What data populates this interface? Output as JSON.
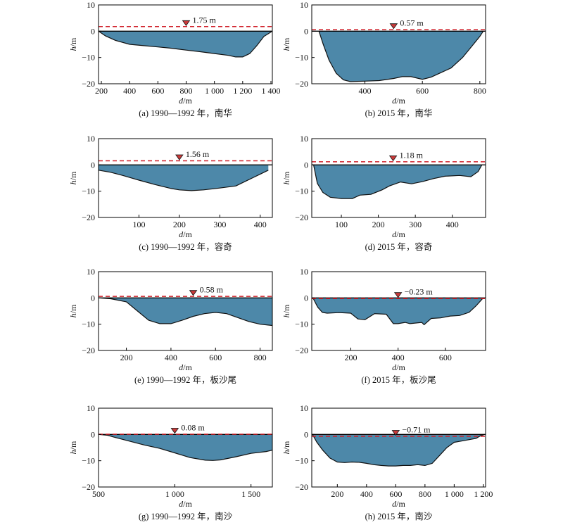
{
  "colors": {
    "fill": "#4d88a9",
    "bed_line": "#111111",
    "water_level": "#d0202a",
    "marker": "#c83a3a",
    "zero_line": "#000000"
  },
  "chart_data": [
    {
      "type": "area",
      "panel": "a",
      "caption": "(a) 1990—1992 年，南华",
      "xlabel": "d/m",
      "ylabel": "h/m",
      "xlim": [
        180,
        1410
      ],
      "ylim": [
        -20,
        10
      ],
      "xticks": [
        200,
        400,
        600,
        800,
        1000,
        1200,
        1400
      ],
      "xtick_labels": [
        "200",
        "400",
        "600",
        "800",
        "1 000",
        "1 200",
        "1 400"
      ],
      "yticks": [
        -20,
        -10,
        0,
        10
      ],
      "water_level": 1.75,
      "water_level_label": "1.75 m",
      "marker_x": 800,
      "x": [
        180,
        230,
        300,
        400,
        500,
        600,
        700,
        800,
        900,
        1000,
        1100,
        1150,
        1200,
        1250,
        1300,
        1350,
        1410
      ],
      "y": [
        0,
        -1.8,
        -3.5,
        -5.0,
        -5.5,
        -6.0,
        -6.5,
        -7.2,
        -7.8,
        -8.5,
        -9.2,
        -9.8,
        -9.8,
        -8.5,
        -5.5,
        -2.0,
        0
      ]
    },
    {
      "type": "area",
      "panel": "b",
      "caption": "(b) 2015 年，南华",
      "xlabel": "d/m",
      "ylabel": "h/m",
      "xlim": [
        215,
        820
      ],
      "ylim": [
        -20,
        10
      ],
      "xticks": [
        400,
        600,
        800
      ],
      "xtick_labels": [
        "400",
        "600",
        "800"
      ],
      "yticks": [
        -20,
        -10,
        0,
        10
      ],
      "water_level": 0.57,
      "water_level_label": "0.57 m",
      "marker_x": 500,
      "x": [
        240,
        255,
        275,
        300,
        325,
        350,
        400,
        450,
        500,
        530,
        560,
        600,
        630,
        660,
        700,
        740,
        770,
        800,
        812
      ],
      "y": [
        0,
        -5,
        -11,
        -16,
        -18.5,
        -19.2,
        -19,
        -18.8,
        -18,
        -17.3,
        -17.3,
        -18.3,
        -17.5,
        -16,
        -14,
        -10,
        -6,
        -2,
        0
      ]
    },
    {
      "type": "area",
      "panel": "c",
      "caption": "(c) 1990—1992 年，容奇",
      "xlabel": "d/m",
      "ylabel": "h/m",
      "xlim": [
        0,
        430
      ],
      "ylim": [
        -20,
        10
      ],
      "xticks": [
        100,
        200,
        300,
        400
      ],
      "xtick_labels": [
        "100",
        "200",
        "300",
        "400"
      ],
      "yticks": [
        -20,
        -10,
        0,
        10
      ],
      "water_level": 1.56,
      "water_level_label": "1.56 m",
      "marker_x": 200,
      "x": [
        0,
        30,
        60,
        100,
        140,
        180,
        200,
        230,
        260,
        300,
        340,
        360,
        380,
        400,
        420
      ],
      "y": [
        -2,
        -2.8,
        -4,
        -5.8,
        -7.5,
        -9.0,
        -9.5,
        -9.8,
        -9.5,
        -8.8,
        -8.0,
        -6.5,
        -5.0,
        -3.5,
        -2.0
      ]
    },
    {
      "type": "area",
      "panel": "d",
      "caption": "(d) 2015 年，容奇",
      "xlabel": "d/m",
      "ylabel": "h/m",
      "xlim": [
        20,
        490
      ],
      "ylim": [
        -20,
        10
      ],
      "xticks": [
        100,
        200,
        300,
        400
      ],
      "xtick_labels": [
        "100",
        "200",
        "300",
        "400"
      ],
      "yticks": [
        -20,
        -10,
        0,
        10
      ],
      "water_level": 1.18,
      "water_level_label": "1.18 m",
      "marker_x": 240,
      "x": [
        25,
        35,
        50,
        70,
        100,
        130,
        150,
        180,
        210,
        230,
        260,
        290,
        320,
        350,
        380,
        420,
        450,
        470,
        480
      ],
      "y": [
        0,
        -7,
        -10.5,
        -12.3,
        -12.8,
        -12.8,
        -11.5,
        -11.2,
        -9.5,
        -8.0,
        -6.5,
        -7.2,
        -6.3,
        -5.2,
        -4.3,
        -4.0,
        -4.5,
        -2.5,
        0
      ]
    },
    {
      "type": "area",
      "panel": "e",
      "caption": "(e) 1990—1992 年，板沙尾",
      "xlabel": "d/m",
      "ylabel": "h/m",
      "xlim": [
        75,
        855
      ],
      "ylim": [
        -20,
        10
      ],
      "xticks": [
        200,
        400,
        600,
        800
      ],
      "xtick_labels": [
        "200",
        "400",
        "600",
        "800"
      ],
      "yticks": [
        -20,
        -10,
        0,
        10
      ],
      "water_level": 0.58,
      "water_level_label": "0.58 m",
      "marker_x": 500,
      "x": [
        75,
        130,
        200,
        250,
        300,
        350,
        400,
        450,
        500,
        550,
        600,
        650,
        700,
        750,
        800,
        855
      ],
      "y": [
        0,
        -0.3,
        -1.5,
        -5,
        -8.5,
        -9.8,
        -9.8,
        -8.5,
        -7.0,
        -6.0,
        -5.5,
        -6.0,
        -7.5,
        -9.0,
        -10.0,
        -10.5
      ]
    },
    {
      "type": "area",
      "panel": "f",
      "caption": "(f) 2015 年，板沙尾",
      "xlabel": "d/m",
      "ylabel": "h/m",
      "xlim": [
        35,
        770
      ],
      "ylim": [
        -20,
        10
      ],
      "xticks": [
        200,
        400,
        600
      ],
      "xtick_labels": [
        "200",
        "400",
        "600"
      ],
      "yticks": [
        -20,
        -10,
        0,
        10
      ],
      "water_level": -0.23,
      "water_level_label": "−0.23 m",
      "marker_x": 400,
      "x": [
        40,
        60,
        80,
        100,
        150,
        200,
        230,
        260,
        300,
        350,
        380,
        400,
        430,
        450,
        500,
        510,
        540,
        580,
        620,
        660,
        700,
        730,
        760
      ],
      "y": [
        0,
        -3.5,
        -5.5,
        -5.8,
        -5.6,
        -5.8,
        -8.0,
        -8.3,
        -6.0,
        -6.2,
        -9.8,
        -9.8,
        -9.3,
        -9.8,
        -9.3,
        -10.2,
        -7.8,
        -7.6,
        -6.9,
        -6.7,
        -5.5,
        -3.0,
        0
      ]
    },
    {
      "type": "area",
      "panel": "g",
      "caption": "(g) 1990—1992 年，南沙",
      "xlabel": "d/m",
      "ylabel": "h/m",
      "xlim": [
        500,
        1640
      ],
      "ylim": [
        -20,
        10
      ],
      "xticks": [
        500,
        1000,
        1500
      ],
      "xtick_labels": [
        "500",
        "1 000",
        "1 500"
      ],
      "yticks": [
        -20,
        -10,
        0,
        10
      ],
      "water_level": 0.08,
      "water_level_label": "0.08 m",
      "marker_x": 1000,
      "x": [
        500,
        560,
        600,
        700,
        800,
        900,
        1000,
        1100,
        1200,
        1250,
        1300,
        1400,
        1500,
        1600,
        1640
      ],
      "y": [
        0,
        -0.3,
        -1,
        -2.5,
        -4,
        -5.3,
        -7,
        -8.8,
        -9.8,
        -9.9,
        -9.7,
        -8.5,
        -7.2,
        -6.5,
        -6.0
      ]
    },
    {
      "type": "area",
      "panel": "h",
      "caption": "(h) 2015 年，南沙",
      "xlabel": "d/m",
      "ylabel": "h/m",
      "xlim": [
        25,
        1215
      ],
      "ylim": [
        -20,
        10
      ],
      "xticks": [
        200,
        400,
        600,
        800,
        1000,
        1200
      ],
      "xtick_labels": [
        "200",
        "400",
        "600",
        "800",
        "1 000",
        "1 200"
      ],
      "yticks": [
        -20,
        -10,
        0,
        10
      ],
      "water_level": -0.71,
      "water_level_label": "−0.71 m",
      "marker_x": 600,
      "x": [
        30,
        60,
        100,
        150,
        200,
        250,
        300,
        350,
        400,
        450,
        500,
        550,
        600,
        650,
        700,
        750,
        800,
        850,
        900,
        950,
        1000,
        1050,
        1100,
        1150,
        1180,
        1210
      ],
      "y": [
        0,
        -3,
        -6,
        -9,
        -10.5,
        -10.7,
        -10.5,
        -10.6,
        -11.0,
        -11.5,
        -11.8,
        -12.0,
        -12.0,
        -11.8,
        -11.8,
        -11.5,
        -11.8,
        -11.0,
        -8.0,
        -5.0,
        -3.0,
        -2.5,
        -2.0,
        -1.5,
        -0.5,
        0
      ]
    }
  ]
}
